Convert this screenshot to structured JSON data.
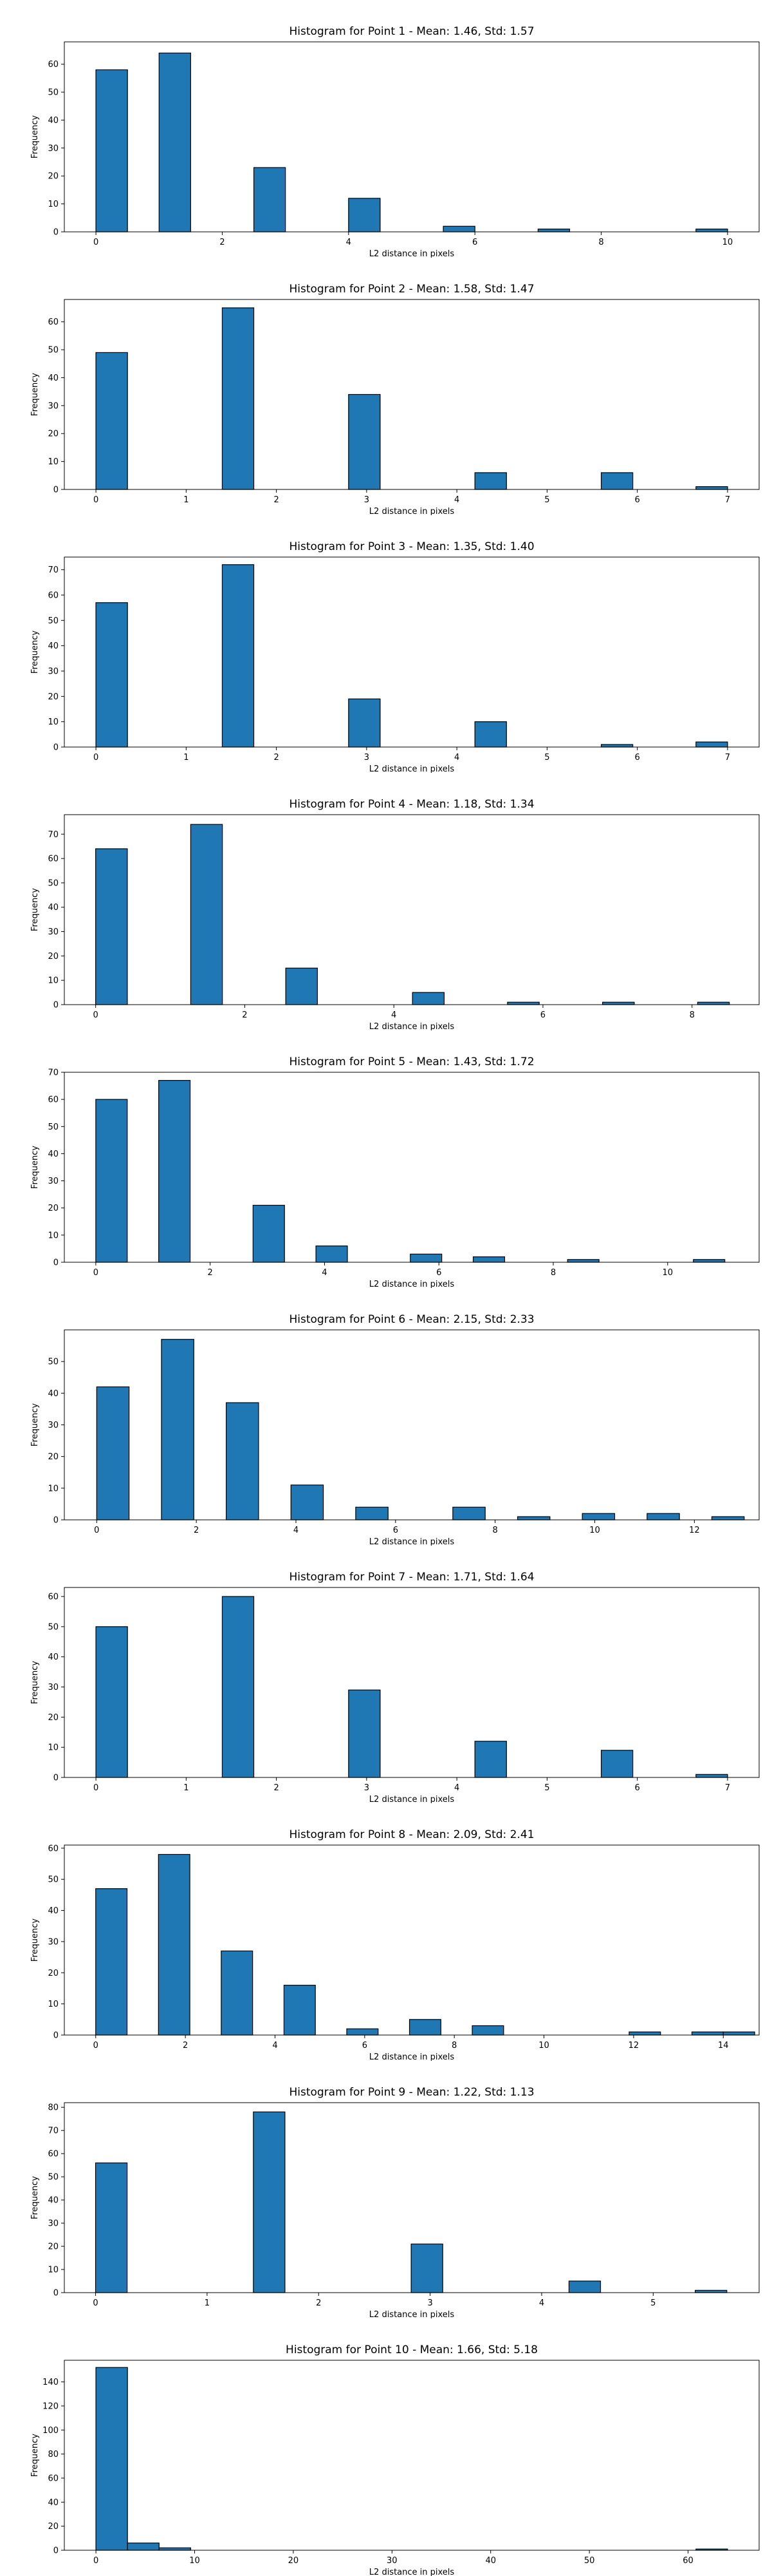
{
  "chart_data": [
    {
      "type": "bar",
      "title": "Histogram for Point 1 - Mean: 1.46, Std: 1.57",
      "xlabel": "L2 distance in pixels",
      "ylabel": "Frequency",
      "xlim": [
        -0.5,
        10.5
      ],
      "ylim": [
        0,
        68
      ],
      "xticks": [
        0,
        2,
        4,
        6,
        8,
        10
      ],
      "yticks": [
        0,
        10,
        20,
        30,
        40,
        50,
        60
      ],
      "bin_width": 0.5,
      "bins": [
        {
          "x": 0,
          "y": 58
        },
        {
          "x": 1.0,
          "y": 64
        },
        {
          "x": 2.5,
          "y": 23
        },
        {
          "x": 4.0,
          "y": 12
        },
        {
          "x": 5.5,
          "y": 2
        },
        {
          "x": 7.0,
          "y": 1
        },
        {
          "x": 9.5,
          "y": 1
        }
      ],
      "color": "#1f77b4"
    },
    {
      "type": "bar",
      "title": "Histogram for Point 2 - Mean: 1.58, Std: 1.47",
      "xlabel": "L2 distance in pixels",
      "ylabel": "Frequency",
      "xlim": [
        -0.35,
        7.35
      ],
      "ylim": [
        0,
        68
      ],
      "xticks": [
        0,
        1,
        2,
        3,
        4,
        5,
        6,
        7
      ],
      "yticks": [
        0,
        10,
        20,
        30,
        40,
        50,
        60
      ],
      "bin_width": 0.35,
      "bins": [
        {
          "x": 0,
          "y": 49
        },
        {
          "x": 1.4,
          "y": 65
        },
        {
          "x": 2.8,
          "y": 34
        },
        {
          "x": 4.2,
          "y": 6
        },
        {
          "x": 5.6,
          "y": 6
        },
        {
          "x": 6.65,
          "y": 1
        }
      ],
      "color": "#1f77b4"
    },
    {
      "type": "bar",
      "title": "Histogram for Point 3 - Mean: 1.35, Std: 1.40",
      "xlabel": "L2 distance in pixels",
      "ylabel": "Frequency",
      "xlim": [
        -0.35,
        7.35
      ],
      "ylim": [
        0,
        75
      ],
      "xticks": [
        0,
        1,
        2,
        3,
        4,
        5,
        6,
        7
      ],
      "yticks": [
        0,
        10,
        20,
        30,
        40,
        50,
        60,
        70
      ],
      "bin_width": 0.35,
      "bins": [
        {
          "x": 0,
          "y": 57
        },
        {
          "x": 1.4,
          "y": 72
        },
        {
          "x": 2.8,
          "y": 19
        },
        {
          "x": 4.2,
          "y": 10
        },
        {
          "x": 5.6,
          "y": 1
        },
        {
          "x": 6.65,
          "y": 2
        }
      ],
      "color": "#1f77b4"
    },
    {
      "type": "bar",
      "title": "Histogram for Point 4 - Mean: 1.18, Std: 1.34",
      "xlabel": "L2 distance in pixels",
      "ylabel": "Frequency",
      "xlim": [
        -0.42,
        8.9
      ],
      "ylim": [
        0,
        78
      ],
      "xticks": [
        0,
        2,
        4,
        6,
        8
      ],
      "yticks": [
        0,
        10,
        20,
        30,
        40,
        50,
        60,
        70
      ],
      "bin_width": 0.425,
      "bins": [
        {
          "x": 0,
          "y": 64
        },
        {
          "x": 1.275,
          "y": 74
        },
        {
          "x": 2.55,
          "y": 15
        },
        {
          "x": 4.25,
          "y": 5
        },
        {
          "x": 5.525,
          "y": 1
        },
        {
          "x": 6.8,
          "y": 1
        },
        {
          "x": 8.075,
          "y": 1
        }
      ],
      "color": "#1f77b4"
    },
    {
      "type": "bar",
      "title": "Histogram for Point 5 - Mean: 1.43, Std: 1.72",
      "xlabel": "L2 distance in pixels",
      "ylabel": "Frequency",
      "xlim": [
        -0.55,
        11.6
      ],
      "ylim": [
        0,
        70
      ],
      "xticks": [
        0,
        2,
        4,
        6,
        8,
        10
      ],
      "yticks": [
        0,
        10,
        20,
        30,
        40,
        50,
        60,
        70
      ],
      "bin_width": 0.55,
      "bins": [
        {
          "x": 0,
          "y": 60
        },
        {
          "x": 1.1,
          "y": 67
        },
        {
          "x": 2.75,
          "y": 21
        },
        {
          "x": 3.85,
          "y": 6
        },
        {
          "x": 5.5,
          "y": 3
        },
        {
          "x": 6.6,
          "y": 2
        },
        {
          "x": 8.25,
          "y": 1
        },
        {
          "x": 10.45,
          "y": 1
        }
      ],
      "color": "#1f77b4"
    },
    {
      "type": "bar",
      "title": "Histogram for Point 6 - Mean: 2.15, Std: 2.33",
      "xlabel": "L2 distance in pixels",
      "ylabel": "Frequency",
      "xlim": [
        -0.65,
        13.3
      ],
      "ylim": [
        0,
        60
      ],
      "xticks": [
        0,
        2,
        4,
        6,
        8,
        10,
        12
      ],
      "yticks": [
        0,
        10,
        20,
        30,
        40,
        50
      ],
      "bin_width": 0.65,
      "bins": [
        {
          "x": 0,
          "y": 42
        },
        {
          "x": 1.3,
          "y": 57
        },
        {
          "x": 2.6,
          "y": 37
        },
        {
          "x": 3.9,
          "y": 11
        },
        {
          "x": 5.2,
          "y": 4
        },
        {
          "x": 7.15,
          "y": 4
        },
        {
          "x": 8.45,
          "y": 1
        },
        {
          "x": 9.75,
          "y": 2
        },
        {
          "x": 11.05,
          "y": 2
        },
        {
          "x": 12.35,
          "y": 1
        }
      ],
      "color": "#1f77b4"
    },
    {
      "type": "bar",
      "title": "Histogram for Point 7 - Mean: 1.71, Std: 1.64",
      "xlabel": "L2 distance in pixels",
      "ylabel": "Frequency",
      "xlim": [
        -0.35,
        7.35
      ],
      "ylim": [
        0,
        63
      ],
      "xticks": [
        0,
        1,
        2,
        3,
        4,
        5,
        6,
        7
      ],
      "yticks": [
        0,
        10,
        20,
        30,
        40,
        50,
        60
      ],
      "bin_width": 0.35,
      "bins": [
        {
          "x": 0,
          "y": 50
        },
        {
          "x": 1.4,
          "y": 60
        },
        {
          "x": 2.8,
          "y": 29
        },
        {
          "x": 4.2,
          "y": 12
        },
        {
          "x": 5.6,
          "y": 9
        },
        {
          "x": 6.65,
          "y": 1
        }
      ],
      "color": "#1f77b4"
    },
    {
      "type": "bar",
      "title": "Histogram for Point 8 - Mean: 2.09, Std: 2.41",
      "xlabel": "L2 distance in pixels",
      "ylabel": "Frequency",
      "xlim": [
        -0.7,
        14.8
      ],
      "ylim": [
        0,
        61
      ],
      "xticks": [
        0,
        2,
        4,
        6,
        8,
        10,
        12,
        14
      ],
      "yticks": [
        0,
        10,
        20,
        30,
        40,
        50,
        60
      ],
      "bin_width": 0.7,
      "bins": [
        {
          "x": 0,
          "y": 47
        },
        {
          "x": 1.4,
          "y": 58
        },
        {
          "x": 2.8,
          "y": 27
        },
        {
          "x": 4.2,
          "y": 16
        },
        {
          "x": 5.6,
          "y": 2
        },
        {
          "x": 7.0,
          "y": 5
        },
        {
          "x": 8.4,
          "y": 3
        },
        {
          "x": 11.9,
          "y": 1
        },
        {
          "x": 13.3,
          "y": 1
        },
        {
          "x": 14.0,
          "y": 1
        }
      ],
      "color": "#1f77b4"
    },
    {
      "type": "bar",
      "title": "Histogram for Point 9 - Mean: 1.22, Std: 1.13",
      "xlabel": "L2 distance in pixels",
      "ylabel": "Frequency",
      "xlim": [
        -0.28,
        5.95
      ],
      "ylim": [
        0,
        82
      ],
      "xticks": [
        0,
        1,
        2,
        3,
        4,
        5
      ],
      "yticks": [
        0,
        10,
        20,
        30,
        40,
        50,
        60,
        70,
        80
      ],
      "bin_width": 0.283,
      "bins": [
        {
          "x": 0,
          "y": 56
        },
        {
          "x": 1.415,
          "y": 78
        },
        {
          "x": 2.83,
          "y": 21
        },
        {
          "x": 4.245,
          "y": 5
        },
        {
          "x": 5.377,
          "y": 1
        }
      ],
      "color": "#1f77b4"
    },
    {
      "type": "bar",
      "title": "Histogram for Point 10 - Mean: 1.66, Std: 5.18",
      "xlabel": "L2 distance in pixels",
      "ylabel": "Frequency",
      "xlim": [
        -3.2,
        67.2
      ],
      "ylim": [
        0,
        158
      ],
      "xticks": [
        0,
        10,
        20,
        30,
        40,
        50,
        60
      ],
      "yticks": [
        0,
        20,
        40,
        60,
        80,
        100,
        120,
        140
      ],
      "bin_width": 3.2,
      "bins": [
        {
          "x": 0,
          "y": 152
        },
        {
          "x": 3.2,
          "y": 6
        },
        {
          "x": 6.4,
          "y": 2
        },
        {
          "x": 60.8,
          "y": 1
        }
      ],
      "color": "#1f77b4"
    }
  ]
}
